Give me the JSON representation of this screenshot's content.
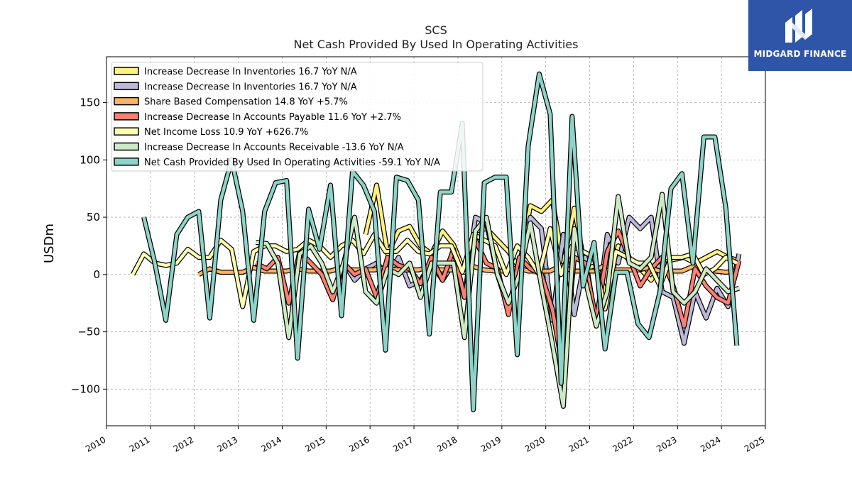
{
  "title": "SCS",
  "subtitle": "Net Cash Provided By Used In Operating Activities",
  "logo": {
    "name": "MIDGARD FINANCE",
    "icon": "midgard-m-logo-icon",
    "background": "#2f55a8"
  },
  "chart_data": {
    "type": "line",
    "ylabel": "USDm",
    "xlabel": "",
    "xlim": [
      2010.0,
      2025.0
    ],
    "ylim": [
      -132,
      190
    ],
    "x_ticks": [
      2010,
      2011,
      2012,
      2013,
      2014,
      2015,
      2016,
      2017,
      2018,
      2019,
      2020,
      2021,
      2022,
      2023,
      2024,
      2025
    ],
    "y_ticks": [
      -100,
      -50,
      0,
      50,
      100,
      150
    ],
    "grid": true,
    "legend_position": "top-left",
    "series": [
      {
        "name": "Increase Decrease In Inventories",
        "legend": "Increase Decrease In Inventories  16.7 YoY N/A",
        "color": "#fdf180",
        "x": [
          2015.9,
          2016.15,
          2016.4,
          2016.65,
          2016.9,
          2017.15,
          2017.4,
          2017.65,
          2017.9,
          2018.15,
          2018.4,
          2018.65,
          2018.9,
          2019.15,
          2019.4,
          2019.65,
          2019.9,
          2020.15,
          2020.4,
          2020.65,
          2020.9,
          2021.15,
          2021.4,
          2021.65,
          2021.9,
          2022.15,
          2022.4,
          2022.65,
          2022.9,
          2023.15,
          2023.4,
          2023.65,
          2023.9,
          2024.15,
          2024.4
        ],
        "values": [
          35,
          78,
          18,
          38,
          42,
          25,
          18,
          38,
          26,
          2,
          38,
          40,
          30,
          20,
          6,
          60,
          55,
          65,
          10,
          58,
          5,
          8,
          -20,
          25,
          12,
          5,
          -5,
          10,
          13,
          15,
          10,
          15,
          20,
          15,
          12
        ]
      },
      {
        "name": "Increase Decrease In Inventories",
        "legend": "Increase Decrease In Inventories  16.7 YoY N/A",
        "color": "#bcb9d8",
        "x": [
          2015.4,
          2015.65,
          2015.9,
          2016.15,
          2016.4,
          2016.65,
          2016.9,
          2017.15,
          2017.4,
          2017.65,
          2017.9,
          2018.15,
          2018.4,
          2018.65,
          2018.9,
          2019.15,
          2019.4,
          2019.65,
          2019.9,
          2020.15,
          2020.4,
          2020.65,
          2020.9,
          2021.15,
          2021.4,
          2021.65,
          2021.9,
          2022.15,
          2022.4,
          2022.65,
          2022.9,
          2023.15,
          2023.4,
          2023.65,
          2023.9,
          2024.15,
          2024.4
        ],
        "values": [
          10,
          -5,
          5,
          10,
          0,
          15,
          -10,
          -5,
          10,
          -5,
          10,
          -20,
          50,
          45,
          0,
          -30,
          10,
          50,
          40,
          -40,
          35,
          -35,
          15,
          -45,
          35,
          10,
          50,
          40,
          50,
          -15,
          -20,
          -60,
          -15,
          -38,
          -12,
          -28,
          18
        ]
      },
      {
        "name": "Share Based Compensation",
        "legend": "Share Based Compensation  14.8 YoY +5.7%",
        "color": "#fdb462",
        "x": [
          2012.1,
          2012.35,
          2012.6,
          2012.85,
          2013.1,
          2013.35,
          2013.6,
          2013.85,
          2014.1,
          2014.35,
          2014.6,
          2014.85,
          2015.1,
          2015.35,
          2015.6,
          2015.85,
          2016.1,
          2016.35,
          2016.6,
          2016.85,
          2017.1,
          2017.35,
          2017.6,
          2017.85,
          2018.1,
          2018.35,
          2018.6,
          2018.85,
          2019.1,
          2019.35,
          2019.6,
          2019.85,
          2020.1,
          2020.35,
          2020.6,
          2020.85,
          2021.1,
          2021.35,
          2021.6,
          2021.85,
          2022.1,
          2022.35,
          2022.6,
          2022.85,
          2023.1,
          2023.35,
          2023.6,
          2023.85,
          2024.1,
          2024.35
        ],
        "values": [
          0,
          5,
          2,
          2,
          2,
          6,
          3,
          3,
          3,
          5,
          3,
          3,
          3,
          6,
          4,
          4,
          4,
          6,
          4,
          4,
          4,
          7,
          4,
          4,
          4,
          7,
          4,
          3,
          3,
          6,
          3,
          3,
          3,
          8,
          3,
          3,
          3,
          8,
          4,
          4,
          4,
          6,
          3,
          3,
          3,
          7,
          3,
          3,
          2,
          3
        ]
      },
      {
        "name": "Increase Decrease In Accounts Payable",
        "legend": "Increase Decrease In Accounts Payable  11.6 YoY +2.7%",
        "color": "#fb8072",
        "x": [
          2013.4,
          2013.65,
          2013.9,
          2014.15,
          2014.4,
          2014.65,
          2014.9,
          2015.15,
          2015.4,
          2015.65,
          2015.9,
          2016.15,
          2016.4,
          2016.65,
          2016.9,
          2017.15,
          2017.4,
          2017.65,
          2017.9,
          2018.15,
          2018.4,
          2018.65,
          2018.9,
          2019.15,
          2019.4,
          2019.65,
          2019.9,
          2020.15,
          2020.4,
          2020.65,
          2020.9,
          2021.15,
          2021.4,
          2021.65,
          2021.9,
          2022.15,
          2022.4,
          2022.65,
          2022.9,
          2023.15,
          2023.4,
          2023.65,
          2023.9,
          2024.15,
          2024.4
        ],
        "values": [
          10,
          5,
          15,
          -25,
          20,
          10,
          0,
          -22,
          10,
          0,
          5,
          -20,
          15,
          8,
          5,
          -8,
          15,
          -5,
          22,
          -20,
          30,
          10,
          5,
          -35,
          15,
          5,
          0,
          -30,
          -85,
          15,
          10,
          -40,
          20,
          38,
          15,
          -10,
          5,
          15,
          -10,
          -45,
          5,
          -10,
          -20,
          -25,
          12
        ]
      },
      {
        "name": "Net Income Loss",
        "legend": "Net Income Loss  10.9 YoY +626.7%",
        "color": "#ffffb3",
        "x": [
          2010.6,
          2010.85,
          2011.1,
          2011.35,
          2011.6,
          2011.85,
          2012.1,
          2012.35,
          2012.6,
          2012.85,
          2013.1,
          2013.35,
          2013.6,
          2013.85,
          2014.1,
          2014.35,
          2014.6,
          2014.85,
          2015.1,
          2015.35,
          2015.6,
          2015.85,
          2016.1,
          2016.35,
          2016.6,
          2016.85,
          2017.1,
          2017.35,
          2017.6,
          2017.85,
          2018.1,
          2018.35,
          2018.6,
          2018.85,
          2019.1,
          2019.35,
          2019.6,
          2019.85,
          2020.1,
          2020.35,
          2020.6,
          2020.85,
          2021.1,
          2021.35,
          2021.6,
          2021.85,
          2022.1,
          2022.35,
          2022.6,
          2022.85,
          2023.1,
          2023.35,
          2023.6,
          2023.85,
          2024.1,
          2024.35
        ],
        "values": [
          0,
          18,
          10,
          8,
          10,
          22,
          15,
          15,
          30,
          22,
          -28,
          20,
          25,
          25,
          20,
          22,
          30,
          25,
          15,
          25,
          30,
          18,
          35,
          20,
          20,
          30,
          20,
          18,
          25,
          25,
          2,
          35,
          30,
          25,
          0,
          25,
          15,
          0,
          40,
          0,
          25,
          20,
          15,
          -30,
          20,
          15,
          10,
          10,
          -10,
          15,
          15,
          18,
          0,
          5,
          15,
          10
        ]
      },
      {
        "name": "Increase Decrease In Accounts Receivable",
        "legend": "Increase Decrease In Accounts Receivable  -13.6 YoY N/A",
        "color": "#ccebc5",
        "x": [
          2013.4,
          2013.65,
          2013.9,
          2014.15,
          2014.4,
          2014.65,
          2014.9,
          2015.15,
          2015.4,
          2015.65,
          2015.9,
          2016.15,
          2016.4,
          2016.65,
          2016.9,
          2017.15,
          2017.4,
          2017.65,
          2017.9,
          2018.15,
          2018.4,
          2018.65,
          2018.9,
          2019.15,
          2019.4,
          2019.65,
          2019.9,
          2020.15,
          2020.4,
          2020.65,
          2020.9,
          2021.15,
          2021.4,
          2021.65,
          2021.9,
          2022.15,
          2022.4,
          2022.65,
          2022.9,
          2023.15,
          2023.4,
          2023.65,
          2023.9,
          2024.15,
          2024.4
        ],
        "values": [
          28,
          27,
          10,
          -55,
          18,
          25,
          10,
          -15,
          10,
          50,
          -15,
          -25,
          5,
          0,
          10,
          -20,
          10,
          10,
          10,
          -55,
          38,
          50,
          0,
          -25,
          0,
          45,
          -10,
          -60,
          -115,
          40,
          -5,
          -45,
          -15,
          68,
          10,
          5,
          15,
          70,
          -15,
          -25,
          -15,
          5,
          -5,
          -15,
          -12
        ]
      },
      {
        "name": "Net Cash Provided By Used In Operating Activities",
        "legend": "Net Cash Provided By Used In Operating Activities  -59.1 YoY N/A",
        "color": "#8dd3c7",
        "x": [
          2010.85,
          2011.1,
          2011.35,
          2011.6,
          2011.85,
          2012.1,
          2012.35,
          2012.6,
          2012.85,
          2013.1,
          2013.35,
          2013.6,
          2013.85,
          2014.1,
          2014.35,
          2014.6,
          2014.85,
          2015.1,
          2015.35,
          2015.6,
          2015.85,
          2016.1,
          2016.35,
          2016.6,
          2016.85,
          2017.1,
          2017.35,
          2017.6,
          2017.85,
          2018.1,
          2018.35,
          2018.6,
          2018.85,
          2019.1,
          2019.35,
          2019.6,
          2019.85,
          2020.1,
          2020.35,
          2020.6,
          2020.85,
          2021.1,
          2021.35,
          2021.6,
          2021.85,
          2022.1,
          2022.35,
          2022.6,
          2022.85,
          2023.1,
          2023.35,
          2023.6,
          2023.85,
          2024.1,
          2024.35
        ],
        "values": [
          50,
          10,
          -40,
          35,
          50,
          55,
          -38,
          65,
          100,
          55,
          -40,
          55,
          80,
          82,
          -73,
          57,
          22,
          78,
          -36,
          90,
          78,
          55,
          -66,
          85,
          82,
          65,
          -52,
          72,
          72,
          132,
          -118,
          80,
          85,
          85,
          -70,
          112,
          175,
          140,
          -95,
          138,
          -10,
          28,
          -65,
          2,
          2,
          -43,
          -55,
          -15,
          75,
          88,
          10,
          120,
          120,
          58,
          -62
        ]
      }
    ]
  }
}
